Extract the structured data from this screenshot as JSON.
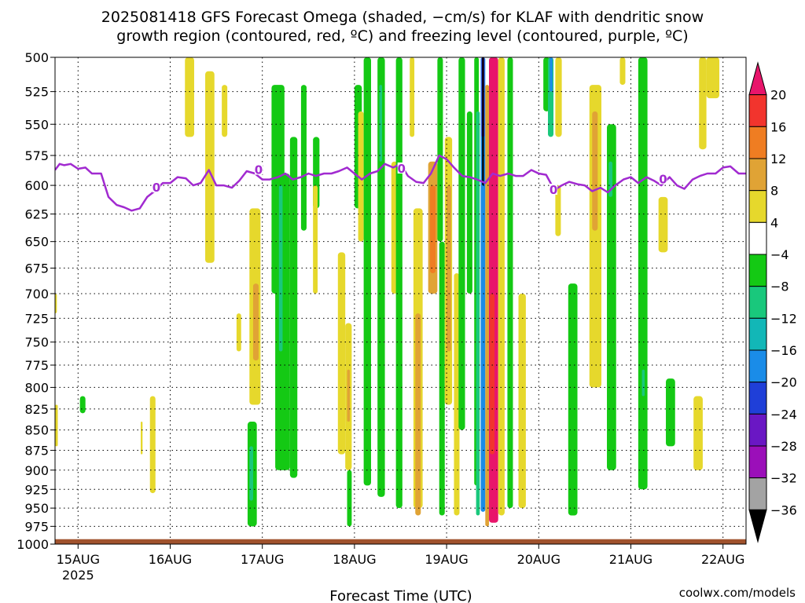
{
  "chart_data": {
    "type": "heatmap",
    "title_lines": [
      "2025081418 GFS Forecast Omega (shaded, −cm/s) for KLAF with dendritic snow",
      "growth region (contoured, red, ºC) and freezing level (contoured, purple, ºC)"
    ],
    "xlabel": "Forecast Time (UTC)",
    "ylabel": "",
    "credit": "coolwx.com/models",
    "y_levels": [
      500,
      525,
      550,
      575,
      600,
      625,
      650,
      675,
      700,
      725,
      750,
      775,
      800,
      825,
      850,
      875,
      900,
      925,
      950,
      975,
      1000
    ],
    "y_scale": "log-pressure",
    "ylim": [
      1000,
      500
    ],
    "x_ticks": [
      "15AUG",
      "16AUG",
      "17AUG",
      "18AUG",
      "19AUG",
      "20AUG",
      "21AUG",
      "22AUG"
    ],
    "x_tick_year": "2025",
    "xlim_days": [
      14.75,
      22.25
    ],
    "grid": true,
    "colorbar": {
      "labels": [
        "20",
        "16",
        "12",
        "8",
        "4",
        "−4",
        "−8",
        "−12",
        "−16",
        "−20",
        "−24",
        "−28",
        "−32",
        "−36"
      ],
      "colors": [
        "#e8156b",
        "#f2342d",
        "#ef7d22",
        "#e0a335",
        "#e6d82c",
        "#ffffff",
        "#14c914",
        "#19c87c",
        "#12b7b7",
        "#1a8ce8",
        "#1f3fd8",
        "#6a17c4",
        "#9b0fb9",
        "#a3a3a3",
        "#000000"
      ]
    },
    "freezing_level": {
      "label": "0",
      "color": "#a12ad0",
      "points": [
        [
          14.75,
          587
        ],
        [
          14.8,
          582
        ],
        [
          14.85,
          583
        ],
        [
          14.92,
          582
        ],
        [
          15.0,
          586
        ],
        [
          15.08,
          585
        ],
        [
          15.15,
          590
        ],
        [
          15.25,
          590
        ],
        [
          15.33,
          610
        ],
        [
          15.42,
          617
        ],
        [
          15.5,
          619
        ],
        [
          15.58,
          622
        ],
        [
          15.67,
          620
        ],
        [
          15.75,
          610
        ],
        [
          15.83,
          605
        ],
        [
          15.92,
          598
        ],
        [
          16.0,
          598
        ],
        [
          16.08,
          593
        ],
        [
          16.17,
          594
        ],
        [
          16.25,
          600
        ],
        [
          16.33,
          598
        ],
        [
          16.42,
          587
        ],
        [
          16.5,
          600
        ],
        [
          16.58,
          600
        ],
        [
          16.67,
          602
        ],
        [
          16.75,
          596
        ],
        [
          16.83,
          588
        ],
        [
          16.92,
          590
        ],
        [
          17.0,
          595
        ],
        [
          17.08,
          595
        ],
        [
          17.17,
          593
        ],
        [
          17.25,
          590
        ],
        [
          17.33,
          595
        ],
        [
          17.42,
          593
        ],
        [
          17.5,
          590
        ],
        [
          17.58,
          592
        ],
        [
          17.67,
          590
        ],
        [
          17.75,
          590
        ],
        [
          17.83,
          588
        ],
        [
          17.92,
          585
        ],
        [
          18.0,
          590
        ],
        [
          18.08,
          595
        ],
        [
          18.17,
          590
        ],
        [
          18.25,
          588
        ],
        [
          18.33,
          582
        ],
        [
          18.42,
          585
        ],
        [
          18.5,
          582
        ],
        [
          18.58,
          592
        ],
        [
          18.67,
          597
        ],
        [
          18.75,
          598
        ],
        [
          18.83,
          590
        ],
        [
          18.92,
          575
        ],
        [
          19.0,
          578
        ],
        [
          19.08,
          585
        ],
        [
          19.17,
          592
        ],
        [
          19.25,
          593
        ],
        [
          19.33,
          595
        ],
        [
          19.42,
          598
        ],
        [
          19.5,
          590
        ],
        [
          19.58,
          592
        ],
        [
          19.67,
          590
        ],
        [
          19.75,
          592
        ],
        [
          19.83,
          592
        ],
        [
          19.92,
          587
        ],
        [
          20.0,
          590
        ],
        [
          20.08,
          591
        ],
        [
          20.17,
          604
        ],
        [
          20.25,
          600
        ],
        [
          20.33,
          597
        ],
        [
          20.42,
          599
        ],
        [
          20.5,
          600
        ],
        [
          20.58,
          605
        ],
        [
          20.67,
          602
        ],
        [
          20.75,
          606
        ],
        [
          20.83,
          600
        ],
        [
          20.92,
          595
        ],
        [
          21.0,
          593
        ],
        [
          21.08,
          598
        ],
        [
          21.17,
          593
        ],
        [
          21.25,
          596
        ],
        [
          21.33,
          600
        ],
        [
          21.42,
          593
        ],
        [
          21.5,
          600
        ],
        [
          21.58,
          603
        ],
        [
          21.67,
          595
        ],
        [
          21.75,
          592
        ],
        [
          21.83,
          590
        ],
        [
          21.92,
          590
        ],
        [
          22.0,
          585
        ],
        [
          22.08,
          584
        ],
        [
          22.17,
          590
        ],
        [
          22.25,
          590
        ]
      ],
      "label_positions": [
        [
          15.85,
          602
        ],
        [
          16.96,
          587
        ],
        [
          18.51,
          586
        ],
        [
          20.16,
          604
        ],
        [
          21.35,
          595
        ]
      ]
    },
    "omega_regions": [
      {
        "t0": 14.73,
        "t1": 14.77,
        "p0": 700,
        "p1": 720,
        "value": 6
      },
      {
        "t0": 14.75,
        "t1": 14.78,
        "p0": 820,
        "p1": 870,
        "value": 6
      },
      {
        "t0": 15.02,
        "t1": 15.08,
        "p0": 810,
        "p1": 830,
        "value": -6
      },
      {
        "t0": 15.68,
        "t1": 15.7,
        "p0": 840,
        "p1": 880,
        "value": 6
      },
      {
        "t0": 15.78,
        "t1": 15.84,
        "p0": 810,
        "p1": 930,
        "value": 6
      },
      {
        "t0": 16.16,
        "t1": 16.26,
        "p0": 500,
        "p1": 560,
        "value": 6
      },
      {
        "t0": 16.38,
        "t1": 16.48,
        "p0": 510,
        "p1": 670,
        "value": 6
      },
      {
        "t0": 16.56,
        "t1": 16.62,
        "p0": 520,
        "p1": 560,
        "value": 6
      },
      {
        "t0": 16.72,
        "t1": 16.77,
        "p0": 720,
        "p1": 760,
        "value": 6
      },
      {
        "t0": 16.84,
        "t1": 16.94,
        "p0": 840,
        "p1": 975,
        "value": -6
      },
      {
        "t0": 16.86,
        "t1": 16.9,
        "p0": 870,
        "p1": 940,
        "value": -10
      },
      {
        "t0": 16.86,
        "t1": 16.98,
        "p0": 620,
        "p1": 820,
        "value": 6
      },
      {
        "t0": 16.9,
        "t1": 16.96,
        "p0": 690,
        "p1": 770,
        "value": 10
      },
      {
        "t0": 17.1,
        "t1": 17.24,
        "p0": 520,
        "p1": 700,
        "value": -6
      },
      {
        "t0": 17.14,
        "t1": 17.3,
        "p0": 590,
        "p1": 900,
        "value": -6
      },
      {
        "t0": 17.18,
        "t1": 17.22,
        "p0": 600,
        "p1": 760,
        "value": -10
      },
      {
        "t0": 17.3,
        "t1": 17.38,
        "p0": 560,
        "p1": 910,
        "value": -6
      },
      {
        "t0": 17.42,
        "t1": 17.48,
        "p0": 520,
        "p1": 640,
        "value": -6
      },
      {
        "t0": 17.55,
        "t1": 17.62,
        "p0": 560,
        "p1": 620,
        "value": -6
      },
      {
        "t0": 17.55,
        "t1": 17.6,
        "p0": 600,
        "p1": 700,
        "value": 6
      },
      {
        "t0": 17.82,
        "t1": 17.9,
        "p0": 660,
        "p1": 880,
        "value": 6
      },
      {
        "t0": 17.9,
        "t1": 17.97,
        "p0": 730,
        "p1": 900,
        "value": 6
      },
      {
        "t0": 17.92,
        "t1": 17.95,
        "p0": 780,
        "p1": 840,
        "value": 10
      },
      {
        "t0": 18.0,
        "t1": 18.08,
        "p0": 520,
        "p1": 620,
        "value": -6
      },
      {
        "t0": 18.04,
        "t1": 18.1,
        "p0": 540,
        "p1": 650,
        "value": 6
      },
      {
        "t0": 17.92,
        "t1": 17.97,
        "p0": 900,
        "p1": 975,
        "value": -6
      },
      {
        "t0": 18.1,
        "t1": 18.18,
        "p0": 500,
        "p1": 920,
        "value": -6
      },
      {
        "t0": 18.25,
        "t1": 18.33,
        "p0": 500,
        "p1": 935,
        "value": -6
      },
      {
        "t0": 18.27,
        "t1": 18.3,
        "p0": 520,
        "p1": 580,
        "value": -10
      },
      {
        "t0": 18.4,
        "t1": 18.47,
        "p0": 580,
        "p1": 700,
        "value": 6
      },
      {
        "t0": 18.45,
        "t1": 18.52,
        "p0": 500,
        "p1": 950,
        "value": -6
      },
      {
        "t0": 18.6,
        "t1": 18.65,
        "p0": 500,
        "p1": 560,
        "value": 6
      },
      {
        "t0": 18.64,
        "t1": 18.74,
        "p0": 620,
        "p1": 950,
        "value": 6
      },
      {
        "t0": 18.66,
        "t1": 18.72,
        "p0": 720,
        "p1": 960,
        "value": 10
      },
      {
        "t0": 18.8,
        "t1": 18.9,
        "p0": 580,
        "p1": 700,
        "value": 10
      },
      {
        "t0": 18.82,
        "t1": 18.88,
        "p0": 600,
        "p1": 680,
        "value": 14
      },
      {
        "t0": 18.9,
        "t1": 18.96,
        "p0": 500,
        "p1": 650,
        "value": -6
      },
      {
        "t0": 18.92,
        "t1": 18.98,
        "p0": 650,
        "p1": 960,
        "value": -6
      },
      {
        "t0": 18.98,
        "t1": 19.06,
        "p0": 560,
        "p1": 820,
        "value": 6
      },
      {
        "t0": 19.0,
        "t1": 19.05,
        "p0": 600,
        "p1": 760,
        "value": 10
      },
      {
        "t0": 19.08,
        "t1": 19.14,
        "p0": 680,
        "p1": 960,
        "value": 6
      },
      {
        "t0": 19.13,
        "t1": 19.2,
        "p0": 500,
        "p1": 850,
        "value": -6
      },
      {
        "t0": 19.22,
        "t1": 19.28,
        "p0": 540,
        "p1": 700,
        "value": -6
      },
      {
        "t0": 19.3,
        "t1": 19.35,
        "p0": 500,
        "p1": 920,
        "value": -6
      },
      {
        "t0": 19.32,
        "t1": 19.36,
        "p0": 540,
        "p1": 960,
        "value": -10
      },
      {
        "t0": 19.37,
        "t1": 19.42,
        "p0": 500,
        "p1": 955,
        "value": -16
      },
      {
        "t0": 19.38,
        "t1": 19.41,
        "p0": 500,
        "p1": 560,
        "value": -24
      },
      {
        "t0": 19.385,
        "t1": 19.405,
        "p0": 500,
        "p1": 600,
        "value": -40
      },
      {
        "t0": 19.42,
        "t1": 19.46,
        "p0": 520,
        "p1": 975,
        "value": 10
      },
      {
        "t0": 19.46,
        "t1": 19.56,
        "p0": 500,
        "p1": 970,
        "value": 22
      },
      {
        "t0": 19.47,
        "t1": 19.52,
        "p0": 700,
        "p1": 880,
        "value": 18
      },
      {
        "t0": 19.56,
        "t1": 19.63,
        "p0": 500,
        "p1": 960,
        "value": 6
      },
      {
        "t0": 19.66,
        "t1": 19.72,
        "p0": 500,
        "p1": 950,
        "value": -6
      },
      {
        "t0": 19.78,
        "t1": 19.86,
        "p0": 700,
        "p1": 950,
        "value": 6
      },
      {
        "t0": 20.05,
        "t1": 20.12,
        "p0": 500,
        "p1": 540,
        "value": -6
      },
      {
        "t0": 20.1,
        "t1": 20.16,
        "p0": 500,
        "p1": 560,
        "value": -10
      },
      {
        "t0": 20.12,
        "t1": 20.15,
        "p0": 500,
        "p1": 525,
        "value": -16
      },
      {
        "t0": 20.18,
        "t1": 20.25,
        "p0": 500,
        "p1": 560,
        "value": 6
      },
      {
        "t0": 20.18,
        "t1": 20.24,
        "p0": 600,
        "p1": 645,
        "value": 6
      },
      {
        "t0": 20.32,
        "t1": 20.42,
        "p0": 690,
        "p1": 960,
        "value": -6
      },
      {
        "t0": 20.55,
        "t1": 20.68,
        "p0": 520,
        "p1": 800,
        "value": 6
      },
      {
        "t0": 20.58,
        "t1": 20.64,
        "p0": 540,
        "p1": 640,
        "value": 10
      },
      {
        "t0": 20.74,
        "t1": 20.84,
        "p0": 550,
        "p1": 900,
        "value": -6
      },
      {
        "t0": 20.76,
        "t1": 20.8,
        "p0": 580,
        "p1": 610,
        "value": -10
      },
      {
        "t0": 20.88,
        "t1": 20.94,
        "p0": 500,
        "p1": 520,
        "value": 6
      },
      {
        "t0": 21.08,
        "t1": 21.18,
        "p0": 500,
        "p1": 925,
        "value": -6
      },
      {
        "t0": 21.12,
        "t1": 21.15,
        "p0": 780,
        "p1": 810,
        "value": -10
      },
      {
        "t0": 21.3,
        "t1": 21.4,
        "p0": 610,
        "p1": 660,
        "value": 6
      },
      {
        "t0": 21.38,
        "t1": 21.48,
        "p0": 790,
        "p1": 870,
        "value": -6
      },
      {
        "t0": 21.68,
        "t1": 21.78,
        "p0": 810,
        "p1": 900,
        "value": 6
      },
      {
        "t0": 21.74,
        "t1": 21.82,
        "p0": 500,
        "p1": 570,
        "value": 6
      },
      {
        "t0": 21.82,
        "t1": 21.96,
        "p0": 500,
        "p1": 530,
        "value": 6
      }
    ],
    "ground": {
      "color": "#a0522d",
      "pressure_top": 993
    }
  }
}
